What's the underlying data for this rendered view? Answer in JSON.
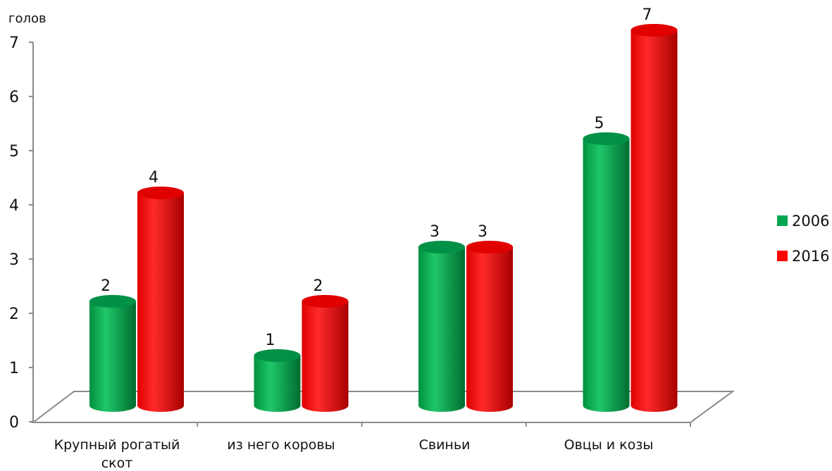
{
  "chart_data": {
    "type": "bar",
    "ylabel": "голов",
    "ylim": [
      0,
      7
    ],
    "yticks": [
      "0",
      "1",
      "2",
      "3",
      "4",
      "5",
      "6",
      "7"
    ],
    "categories": [
      [
        "Крупный рогатый",
        "скот"
      ],
      [
        "из него коровы"
      ],
      [
        "Свиньи"
      ],
      [
        "Овцы и козы"
      ]
    ],
    "series": [
      {
        "name": "2006",
        "color": "#00a651",
        "values": [
          2,
          1,
          3,
          5
        ]
      },
      {
        "name": "2016",
        "color": "#ff0000",
        "values": [
          4,
          2,
          3,
          7
        ]
      }
    ],
    "grid": false,
    "legend": "right"
  }
}
